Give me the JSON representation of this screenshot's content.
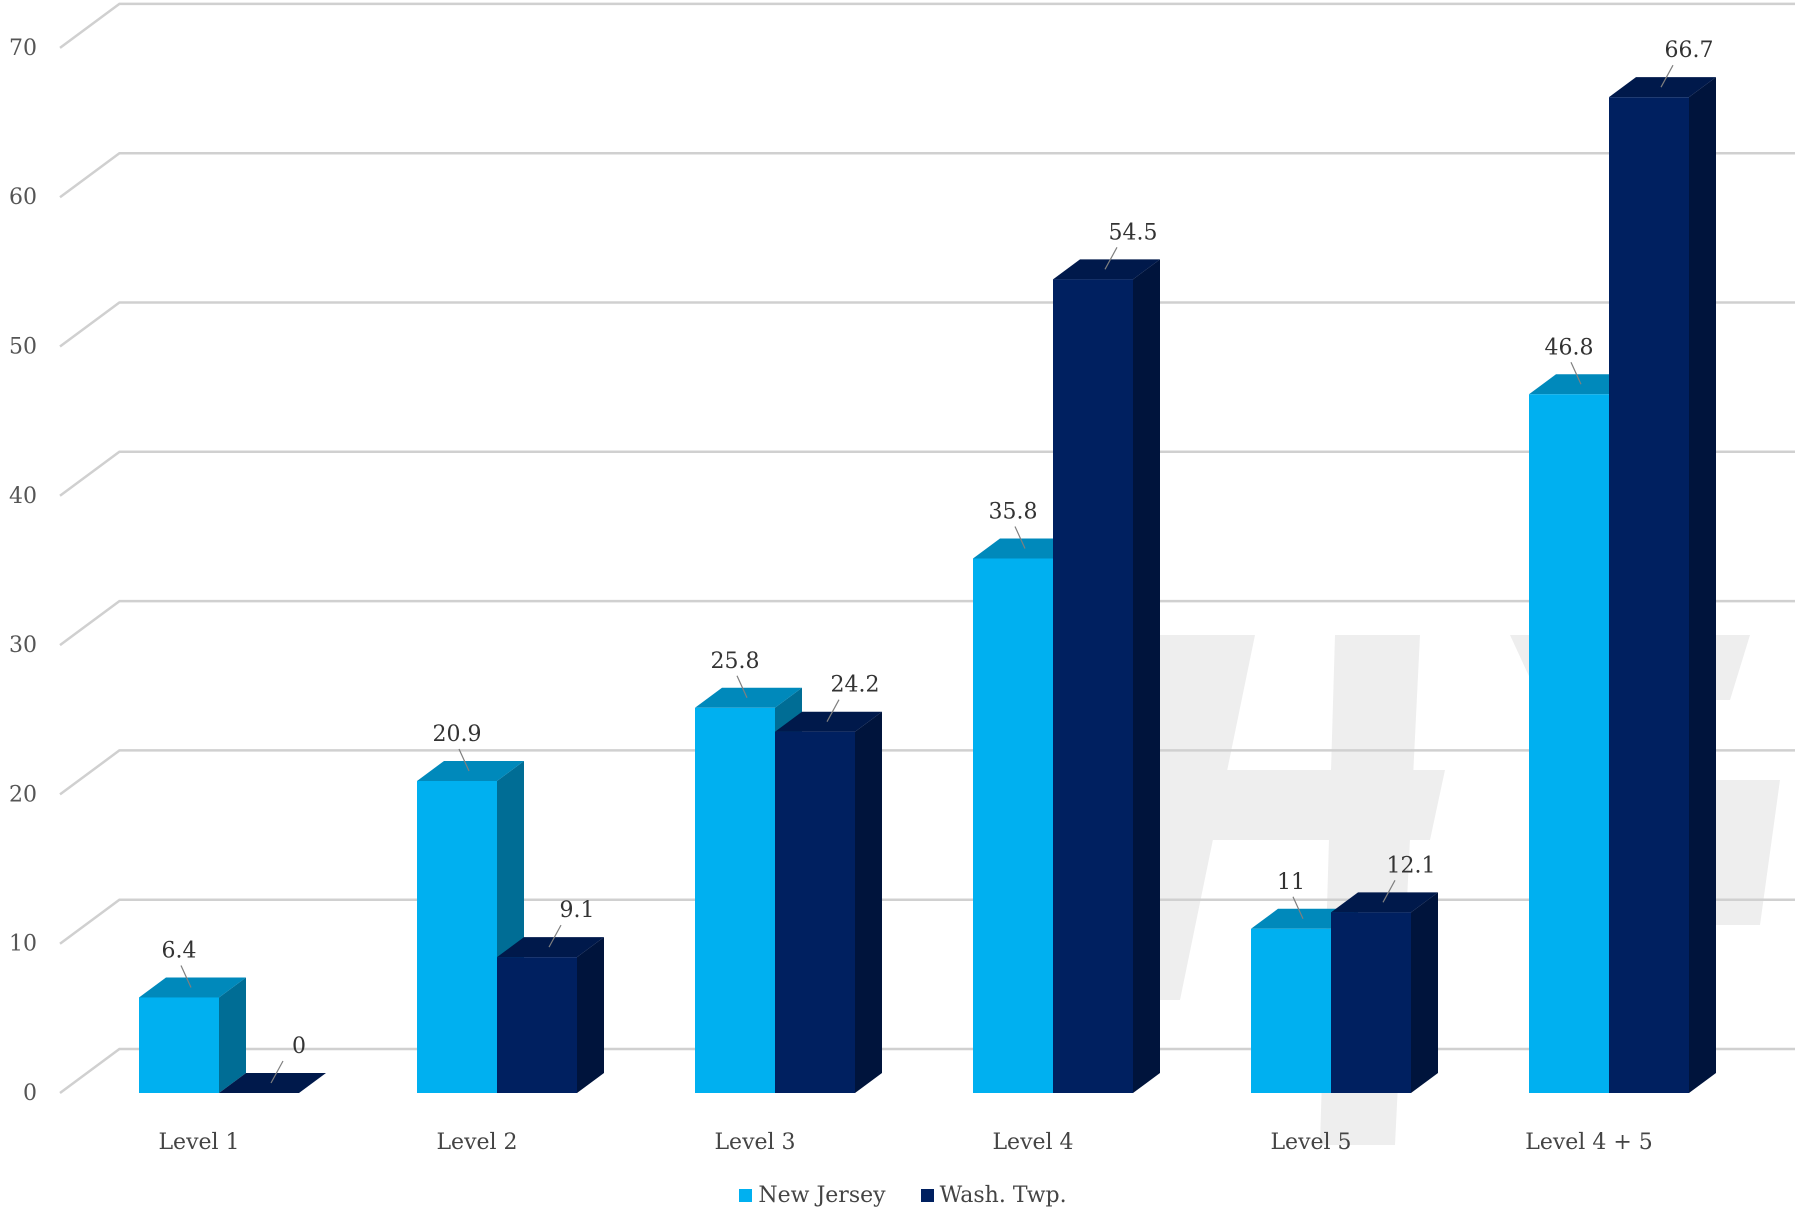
{
  "chart_data": {
    "type": "bar",
    "categories": [
      "Level 1",
      "Level 2",
      "Level 3",
      "Level 4",
      "Level 5",
      "Level 4 + 5"
    ],
    "series": [
      {
        "name": "New Jersey",
        "values": [
          6.4,
          20.9,
          25.8,
          35.8,
          11,
          46.8
        ],
        "color": "#00B0F0"
      },
      {
        "name": "Wash. Twp.",
        "values": [
          0,
          9.1,
          24.2,
          54.5,
          12.1,
          66.7
        ],
        "color": "#002060"
      }
    ],
    "data_labels": [
      [
        "6.4",
        "20.9",
        "25.8",
        "35.8",
        "11",
        "46.8"
      ],
      [
        "0",
        "9.1",
        "24.2",
        "54.5",
        "12.1",
        "66.7"
      ]
    ],
    "yticks": [
      "0",
      "10",
      "20",
      "30",
      "40",
      "50",
      "60",
      "70"
    ],
    "ylim": [
      0,
      70
    ],
    "grid": true,
    "style": "3d clustered column",
    "legend_position": "bottom",
    "title": "",
    "xlabel": "",
    "ylabel": ""
  }
}
